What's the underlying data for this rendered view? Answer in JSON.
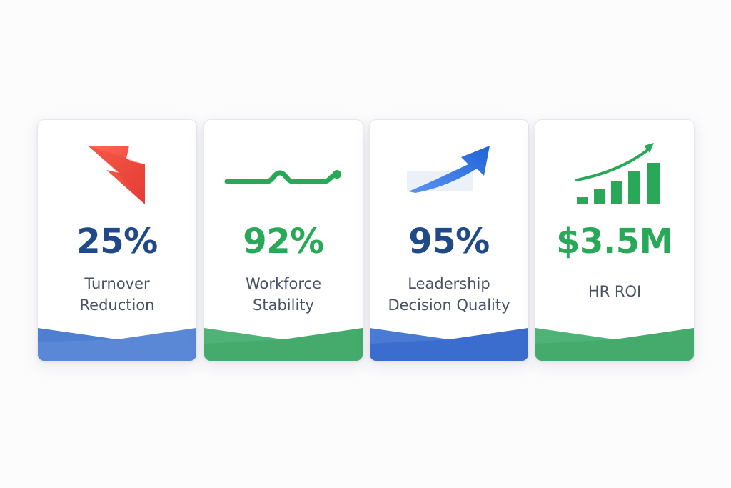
{
  "colors": {
    "blue_dark": "#1f4a87",
    "green": "#2aa85a",
    "red": "#e9443a",
    "blue_bright": "#2b6fe0",
    "label_gray": "#4a5163",
    "footer_blue": "#4f7fd1",
    "footer_green": "#4fb377"
  },
  "cards": [
    {
      "value": "25%",
      "label_lines": [
        "Turnover",
        "Reduction"
      ],
      "icon": "trend-down-arrow-icon",
      "value_color": "#1f4a87"
    },
    {
      "value": "92%",
      "label_lines": [
        "Workforce",
        "Stability"
      ],
      "icon": "flat-trend-line-icon",
      "value_color": "#2aa85a"
    },
    {
      "value": "95%",
      "label_lines": [
        "Leadership",
        "Decision Quality"
      ],
      "icon": "trend-up-arrow-icon",
      "value_color": "#1f4a87"
    },
    {
      "value": "$3.5M",
      "label_lines": [
        "HR ROI"
      ],
      "icon": "growth-bar-chart-icon",
      "value_color": "#2aa85a"
    }
  ]
}
